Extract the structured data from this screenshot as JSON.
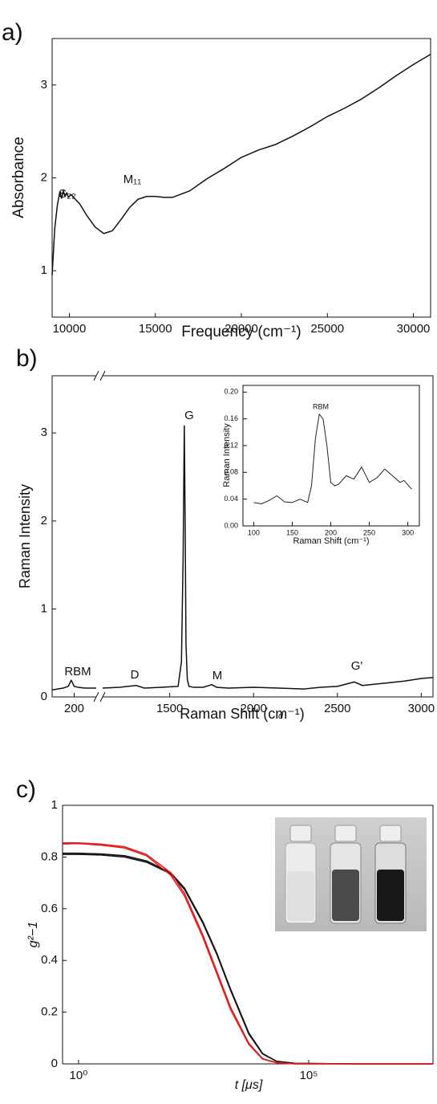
{
  "chart_data": [
    {
      "type": "line",
      "panel_label": "a)",
      "xlabel": "Frequency (cm⁻¹)",
      "ylabel": "Absorbance",
      "xlim": [
        9000,
        31000
      ],
      "ylim": [
        0.5,
        3.5
      ],
      "xticks": [
        10000,
        15000,
        20000,
        25000,
        30000
      ],
      "yticks": [
        1,
        2,
        3
      ],
      "annotations": [
        "S₂₂",
        "M₁₁"
      ],
      "x": [
        9000,
        9150,
        9300,
        9450,
        9550,
        9650,
        9750,
        9850,
        9950,
        10100,
        10300,
        10600,
        11000,
        11500,
        12000,
        12500,
        13000,
        13500,
        14000,
        14500,
        15000,
        15500,
        16000,
        17000,
        18000,
        19000,
        20000,
        21000,
        22000,
        23000,
        24000,
        25000,
        26000,
        27000,
        28000,
        29000,
        30000,
        31000
      ],
      "series": [
        {
          "color": "#111111",
          "values": [
            0.95,
            1.45,
            1.7,
            1.85,
            1.78,
            1.86,
            1.8,
            1.84,
            1.79,
            1.82,
            1.78,
            1.72,
            1.6,
            1.47,
            1.4,
            1.43,
            1.55,
            1.68,
            1.77,
            1.8,
            1.8,
            1.79,
            1.79,
            1.86,
            1.99,
            2.1,
            2.22,
            2.3,
            2.36,
            2.45,
            2.55,
            2.66,
            2.75,
            2.85,
            2.97,
            3.1,
            3.22,
            3.33
          ]
        }
      ]
    },
    {
      "type": "line",
      "panel_label": "b)",
      "xlabel": "Raman Shift (cm⁻¹)",
      "ylabel": "Raman Intensity",
      "xlim": [
        170,
        3070
      ],
      "xbreak": [
        230,
        1100
      ],
      "ylim": [
        0,
        3.65
      ],
      "xticks": [
        200,
        1500,
        2000,
        2500,
        3000
      ],
      "yticks": [
        0,
        1,
        2,
        3
      ],
      "annotations": [
        "RBM",
        "D",
        "G",
        "M",
        "G'",
        "d"
      ],
      "x": [
        170,
        185,
        192,
        196,
        200,
        205,
        215,
        230,
        1100,
        1200,
        1300,
        1350,
        1450,
        1550,
        1570,
        1580,
        1587,
        1592,
        1597,
        1605,
        1615,
        1640,
        1700,
        1750,
        1780,
        1850,
        2000,
        2150,
        2300,
        2400,
        2500,
        2600,
        2650,
        2700,
        2800,
        2900,
        3000,
        3070
      ],
      "series": [
        {
          "color": "#111111",
          "values": [
            0.08,
            0.1,
            0.12,
            0.19,
            0.12,
            0.11,
            0.1,
            0.1,
            0.1,
            0.11,
            0.13,
            0.1,
            0.11,
            0.12,
            0.4,
            1.6,
            3.08,
            2.0,
            0.6,
            0.2,
            0.12,
            0.11,
            0.11,
            0.14,
            0.11,
            0.1,
            0.11,
            0.1,
            0.09,
            0.11,
            0.12,
            0.17,
            0.13,
            0.14,
            0.16,
            0.18,
            0.21,
            0.22
          ]
        }
      ]
    },
    {
      "type": "line",
      "xlabel": "Raman Shift (cm⁻¹)",
      "ylabel": "Raman Intensity",
      "xlim": [
        86,
        315
      ],
      "ylim": [
        0,
        0.21
      ],
      "xticks": [
        100,
        150,
        200,
        250,
        300
      ],
      "yticks": [
        {
          "value": 0,
          "label": "0.00"
        },
        0.04,
        0.08,
        0.12,
        0.16,
        {
          "value": 0.2,
          "label": "0.20"
        }
      ],
      "annotations": [
        "RBM"
      ],
      "x": [
        100,
        110,
        120,
        130,
        140,
        150,
        160,
        170,
        175,
        180,
        185,
        190,
        195,
        200,
        205,
        210,
        220,
        230,
        240,
        250,
        260,
        270,
        280,
        290,
        295,
        305
      ],
      "series": [
        {
          "color": "#222222",
          "values": [
            0.035,
            0.033,
            0.038,
            0.045,
            0.036,
            0.035,
            0.04,
            0.035,
            0.06,
            0.13,
            0.167,
            0.16,
            0.12,
            0.065,
            0.06,
            0.062,
            0.075,
            0.07,
            0.088,
            0.065,
            0.072,
            0.085,
            0.075,
            0.065,
            0.068,
            0.055
          ]
        }
      ]
    },
    {
      "type": "line",
      "panel_label": "c)",
      "xlabel": "t  [μs]",
      "ylabel": "g²−1",
      "log_x": true,
      "xlim": [
        0.45,
        50000000
      ],
      "ylim": [
        0,
        1
      ],
      "xticks": [
        {
          "value": 1,
          "label": "10⁰"
        },
        {
          "value": 100000,
          "label": "10⁵"
        }
      ],
      "yticks": [
        0,
        0.2,
        0.4,
        0.6,
        0.8,
        1
      ],
      "annotations": [],
      "x": [
        0.45,
        1,
        3,
        10,
        30,
        100,
        200,
        500,
        1000,
        2000,
        5000,
        10000,
        20000,
        50000,
        1000000,
        50000000
      ],
      "series": [
        {
          "color": "#111111",
          "values": [
            0.815,
            0.815,
            0.812,
            0.805,
            0.785,
            0.74,
            0.68,
            0.55,
            0.43,
            0.29,
            0.12,
            0.04,
            0.01,
            0.002,
            0,
            0
          ]
        },
        {
          "color": "#111111",
          "values": [
            0.81,
            0.81,
            0.808,
            0.8,
            0.78,
            0.735,
            0.675,
            0.545,
            0.425,
            0.285,
            0.115,
            0.038,
            0.01,
            0.002,
            0,
            0
          ]
        },
        {
          "color": "#e02020",
          "values": [
            0.855,
            0.855,
            0.85,
            0.84,
            0.81,
            0.74,
            0.66,
            0.5,
            0.36,
            0.22,
            0.08,
            0.02,
            0.005,
            0,
            0,
            0
          ]
        },
        {
          "color": "#e02020",
          "values": [
            0.85,
            0.852,
            0.846,
            0.835,
            0.805,
            0.73,
            0.65,
            0.49,
            0.35,
            0.21,
            0.075,
            0.018,
            0.004,
            0,
            0,
            0
          ]
        }
      ]
    }
  ]
}
